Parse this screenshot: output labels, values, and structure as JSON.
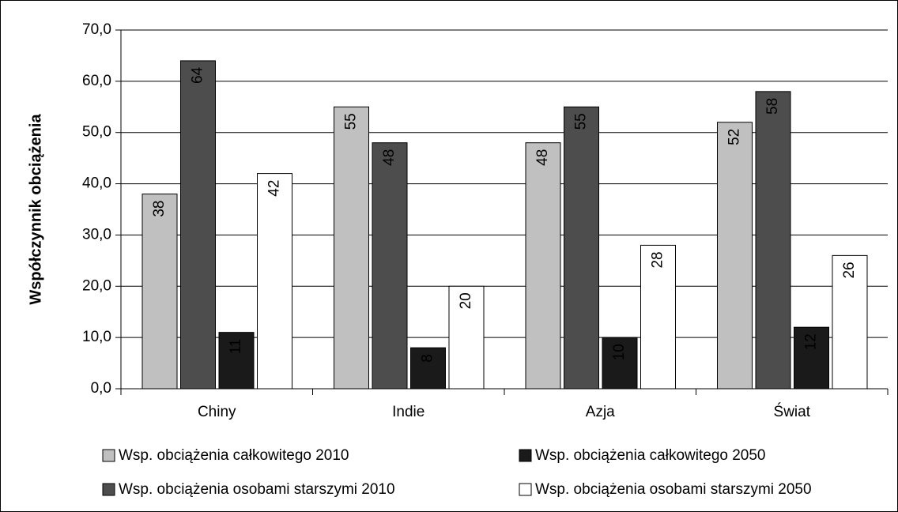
{
  "chart_data": {
    "type": "bar",
    "y_label": "Współczynnik obciążenia",
    "categories": [
      "Chiny",
      "Indie",
      "Azja",
      "Świat"
    ],
    "series": [
      {
        "name": "Wsp. obciążenia całkowitego 2010",
        "color": "#c0c0c0",
        "values": [
          38,
          55,
          48,
          52
        ]
      },
      {
        "name": "Wsp. obciążenia osobami starszymi 2010",
        "color": "#4d4d4d",
        "values": [
          64,
          48,
          55,
          58
        ]
      },
      {
        "name": "Wsp. obciążenia całkowitego 2050",
        "color": "#1a1a1a",
        "values": [
          11,
          8,
          10,
          12
        ]
      },
      {
        "name": "Wsp. obciążenia osobami starszymi 2050",
        "color": "#ffffff",
        "values": [
          42,
          20,
          28,
          26
        ]
      }
    ],
    "ylim": [
      0,
      70
    ],
    "yticks": [
      {
        "value": 0,
        "label": "0,0"
      },
      {
        "value": 10,
        "label": "10,0"
      },
      {
        "value": 20,
        "label": "20,0"
      },
      {
        "value": 30,
        "label": "30,0"
      },
      {
        "value": 40,
        "label": "40,0"
      },
      {
        "value": 50,
        "label": "50,0"
      },
      {
        "value": 60,
        "label": "60,0"
      },
      {
        "value": 70,
        "label": "70,0"
      }
    ],
    "grid": true
  }
}
